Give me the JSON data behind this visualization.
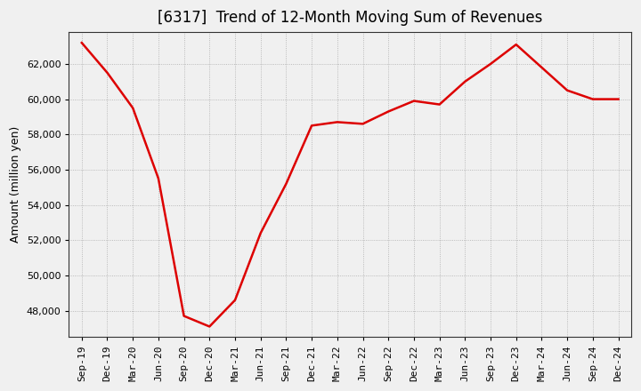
{
  "title": "[6317]  Trend of 12-Month Moving Sum of Revenues",
  "ylabel": "Amount (million yen)",
  "line_color": "#dd0000",
  "background_color": "#f0f0f0",
  "plot_background_color": "#f0f0f0",
  "grid_color": "#999999",
  "labels": [
    "Sep-19",
    "Dec-19",
    "Mar-20",
    "Jun-20",
    "Sep-20",
    "Dec-20",
    "Mar-21",
    "Jun-21",
    "Sep-21",
    "Dec-21",
    "Mar-22",
    "Jun-22",
    "Sep-22",
    "Dec-22",
    "Mar-23",
    "Jun-23",
    "Sep-23",
    "Dec-23",
    "Mar-24",
    "Jun-24",
    "Sep-24",
    "Dec-24"
  ],
  "values": [
    63200,
    61500,
    59500,
    55500,
    47700,
    47100,
    48600,
    52400,
    55200,
    58500,
    58700,
    58600,
    59300,
    59900,
    59700,
    61000,
    62000,
    63100,
    61800,
    60500,
    60000,
    60000
  ],
  "ylim": [
    46500,
    63800
  ],
  "yticks": [
    48000,
    50000,
    52000,
    54000,
    56000,
    58000,
    60000,
    62000
  ],
  "title_fontsize": 12,
  "ylabel_fontsize": 9,
  "tick_fontsize": 8,
  "line_width": 1.8
}
